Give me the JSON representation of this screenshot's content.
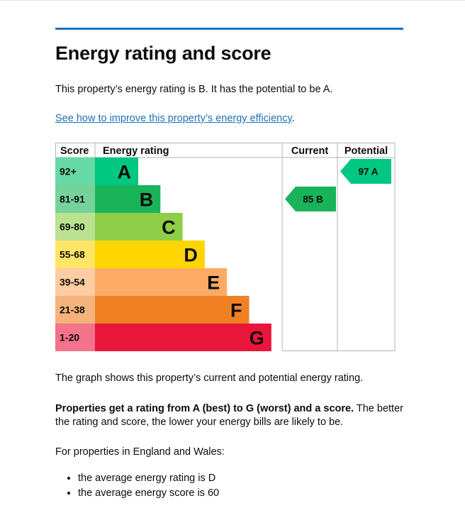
{
  "heading": "Energy rating and score",
  "intro": "This property’s energy rating is B. It has the potential to be A.",
  "link_text": "See how to improve this property’s energy efficiency",
  "link_suffix": ".",
  "graph_caption": "The graph shows this property’s current and potential energy rating.",
  "scale_note": {
    "bold": "Properties get a rating from A (best) to G (worst) and a score.",
    "rest": "The better the rating and score, the lower your energy bills are likely to be."
  },
  "average_intro": "For properties in England and Wales:",
  "averages": [
    "the average energy rating is D",
    "the average energy score is 60"
  ],
  "colors": {
    "link": "#1d70b8",
    "rule": "#1d70b8"
  },
  "chart_data": {
    "type": "table",
    "headers": {
      "score": "Score",
      "rating": "Energy rating",
      "current": "Current",
      "potential": "Potential"
    },
    "bands": [
      {
        "range": "92+",
        "letter": "A",
        "color": "#00c781",
        "light": "#66d9a7"
      },
      {
        "range": "81-91",
        "letter": "B",
        "color": "#19b459",
        "light": "#75d29b"
      },
      {
        "range": "69-80",
        "letter": "C",
        "color": "#8dce46",
        "light": "#bbe290"
      },
      {
        "range": "55-68",
        "letter": "D",
        "color": "#ffd500",
        "light": "#ffe566"
      },
      {
        "range": "39-54",
        "letter": "E",
        "color": "#fcaa65",
        "light": "#fdcca3"
      },
      {
        "range": "21-38",
        "letter": "F",
        "color": "#ef8023",
        "light": "#f5b37b"
      },
      {
        "range": "1-20",
        "letter": "G",
        "color": "#e9153b",
        "light": "#f2738a"
      }
    ],
    "current": {
      "score": 85,
      "letter": "B",
      "label": "85  B"
    },
    "potential": {
      "score": 97,
      "letter": "A",
      "label": "97  A"
    }
  }
}
